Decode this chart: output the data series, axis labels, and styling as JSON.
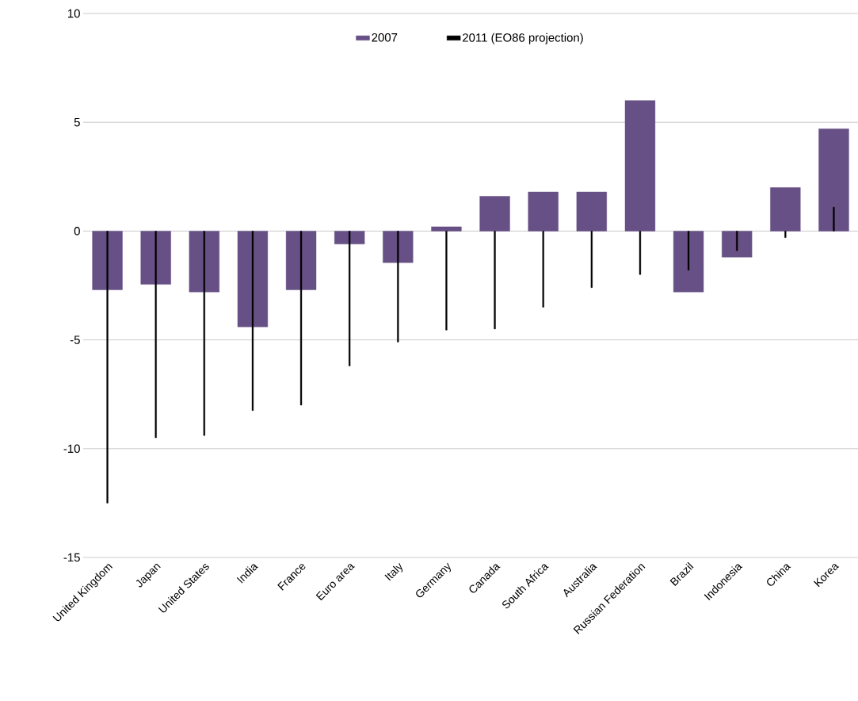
{
  "chart_data": {
    "type": "bar",
    "categories": [
      "United Kingdom",
      "Japan",
      "United States",
      "India",
      "France",
      "Euro area",
      "Italy",
      "Germany",
      "Canada",
      "South Africa",
      "Australia",
      "Russian Federation",
      "Brazil",
      "Indonesia",
      "China",
      "Korea"
    ],
    "series": [
      {
        "name": "2007",
        "color": "#675085",
        "values": [
          -2.7,
          -2.45,
          -2.8,
          -4.4,
          -2.7,
          -0.6,
          -1.45,
          0.2,
          1.6,
          1.8,
          1.8,
          6.0,
          -2.8,
          -1.2,
          2.0,
          4.7
        ]
      },
      {
        "name": "2011 (EO86 projection)",
        "color": "#000000",
        "values": [
          -12.5,
          -9.5,
          -9.4,
          -8.25,
          -8.0,
          -6.2,
          -5.1,
          -4.55,
          -4.5,
          -3.5,
          -2.6,
          -2.0,
          -1.8,
          -0.9,
          -0.3,
          1.1
        ]
      }
    ],
    "ylim": [
      -15,
      10
    ],
    "yticks": [
      -15,
      -10,
      -5,
      0,
      5,
      10
    ],
    "grid": "y",
    "legend": "top"
  }
}
